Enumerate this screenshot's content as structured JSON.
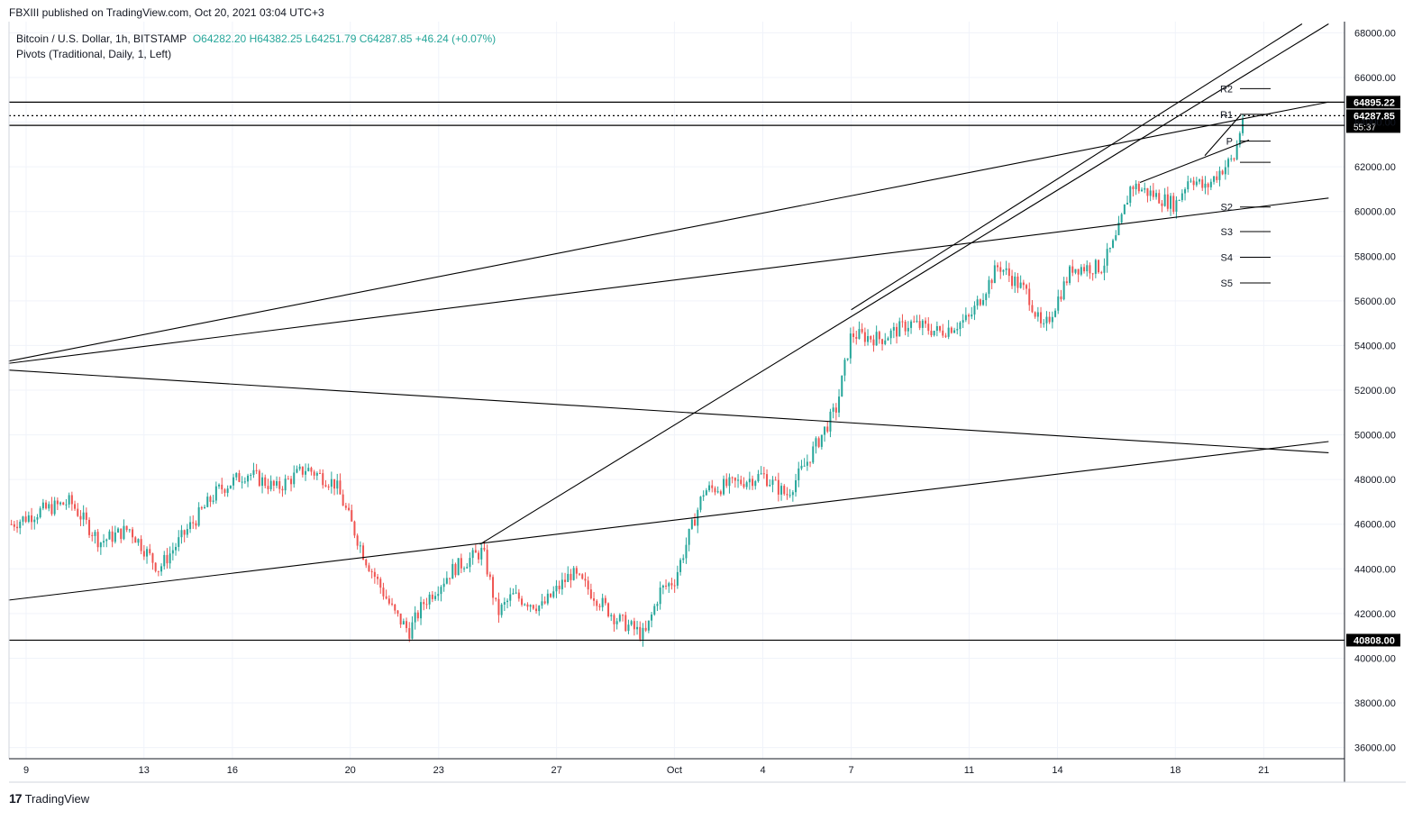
{
  "header": {
    "publish_text": "FBXIII published on TradingView.com, Oct 20, 2021 03:04 UTC+3"
  },
  "legend": {
    "symbol": "Bitcoin / U.S. Dollar, 1h, BITSTAMP",
    "open": "O64282.20",
    "high": "H64382.25",
    "low": "L64251.79",
    "close": "C64287.85",
    "change": "+46.24 (+0.07%)",
    "pivots": "Pivots (Traditional, Daily, 1, Left)"
  },
  "footer": {
    "brand": "TradingView",
    "logo_icon": "tradingview-logo-icon"
  },
  "colors": {
    "up": "#26a69a",
    "down": "#ef5350",
    "line": "#000000",
    "grid": "#f0f3fa"
  },
  "chart_data": {
    "type": "candlestick",
    "symbol": "BTCUSD",
    "timeframe": "1h",
    "ylim": [
      35500,
      68500
    ],
    "y_ticks": [
      "68000.00",
      "66000.00",
      "64000.00",
      "62000.00",
      "60000.00",
      "58000.00",
      "56000.00",
      "54000.00",
      "52000.00",
      "50000.00",
      "48000.00",
      "46000.00",
      "44000.00",
      "42000.00",
      "40000.00",
      "38000.00",
      "36000.00"
    ],
    "x_ticks": [
      {
        "label": "9",
        "day": 9
      },
      {
        "label": "13",
        "day": 13
      },
      {
        "label": "16",
        "day": 16
      },
      {
        "label": "20",
        "day": 20
      },
      {
        "label": "23",
        "day": 23
      },
      {
        "label": "27",
        "day": 27
      },
      {
        "label": "Oct",
        "day": 31
      },
      {
        "label": "4",
        "day": 34
      },
      {
        "label": "7",
        "day": 37
      },
      {
        "label": "11",
        "day": 41
      },
      {
        "label": "14",
        "day": 44
      },
      {
        "label": "18",
        "day": 48
      },
      {
        "label": "21",
        "day": 51
      }
    ],
    "price_path": [
      [
        8.5,
        46000
      ],
      [
        9.5,
        46600
      ],
      [
        10.5,
        47000
      ],
      [
        11.5,
        45200
      ],
      [
        12.5,
        45800
      ],
      [
        13.5,
        44000
      ],
      [
        14.5,
        45800
      ],
      [
        15.5,
        47500
      ],
      [
        16.5,
        48300
      ],
      [
        17.5,
        47600
      ],
      [
        18.5,
        48500
      ],
      [
        19.5,
        47800
      ],
      [
        20.5,
        44500
      ],
      [
        21.5,
        42000
      ],
      [
        22.0,
        41200
      ],
      [
        22.5,
        42500
      ],
      [
        23.5,
        44000
      ],
      [
        24.5,
        44800
      ],
      [
        25.0,
        42000
      ],
      [
        25.5,
        42800
      ],
      [
        26.5,
        42300
      ],
      [
        27.5,
        43800
      ],
      [
        28.0,
        43200
      ],
      [
        29.0,
        41800
      ],
      [
        30.0,
        41000
      ],
      [
        30.5,
        43000
      ],
      [
        31.0,
        43500
      ],
      [
        31.5,
        45500
      ],
      [
        32.0,
        47500
      ],
      [
        33.0,
        47800
      ],
      [
        34.0,
        48200
      ],
      [
        34.8,
        47300
      ],
      [
        35.5,
        48800
      ],
      [
        36.5,
        51200
      ],
      [
        37.0,
        54500
      ],
      [
        38.0,
        54300
      ],
      [
        39.0,
        55000
      ],
      [
        40.0,
        54600
      ],
      [
        41.0,
        55200
      ],
      [
        42.0,
        57600
      ],
      [
        43.0,
        56300
      ],
      [
        43.5,
        54600
      ],
      [
        44.5,
        57500
      ],
      [
        45.5,
        57500
      ],
      [
        46.0,
        58800
      ],
      [
        46.5,
        61200
      ],
      [
        47.5,
        60600
      ],
      [
        48.0,
        60300
      ],
      [
        48.5,
        61600
      ],
      [
        49.0,
        61000
      ],
      [
        49.5,
        61800
      ],
      [
        50.0,
        62400
      ],
      [
        50.3,
        64300
      ]
    ],
    "horizontal_levels": [
      {
        "value": 64895.22,
        "label": "64895.22"
      },
      {
        "value": 63855.37,
        "label": "63855.37"
      },
      {
        "value": 40808.0,
        "label": "40808.00"
      }
    ],
    "last_price": {
      "value": 64287.85,
      "label": "64287.85",
      "countdown": "55:37"
    },
    "pivots": [
      {
        "label": "R2",
        "value": 65500
      },
      {
        "label": "R1",
        "value": 64350
      },
      {
        "label": "P",
        "value": 63150
      },
      {
        "label": "",
        "value": 62200
      },
      {
        "label": "S2",
        "value": 60200
      },
      {
        "label": "S3",
        "value": 59100
      },
      {
        "label": "S4",
        "value": 57950
      },
      {
        "label": "S5",
        "value": 56800
      }
    ],
    "trendlines": [
      {
        "from": [
          8.4,
          53300
        ],
        "to": [
          53.2,
          64900
        ]
      },
      {
        "from": [
          8.4,
          53200
        ],
        "to": [
          53.2,
          60600
        ]
      },
      {
        "from": [
          8.4,
          52900
        ],
        "to": [
          53.2,
          49200
        ]
      },
      {
        "from": [
          8.4,
          42600
        ],
        "to": [
          53.2,
          49700
        ]
      },
      {
        "from": [
          24.4,
          45100
        ],
        "to": [
          53.2,
          68400
        ]
      },
      {
        "from": [
          37.0,
          55600
        ],
        "to": [
          52.3,
          68400
        ]
      },
      {
        "from": [
          46.8,
          61300
        ],
        "to": [
          50.5,
          63200
        ]
      },
      {
        "from": [
          49.0,
          62500
        ],
        "to": [
          50.2,
          64300
        ]
      }
    ]
  }
}
